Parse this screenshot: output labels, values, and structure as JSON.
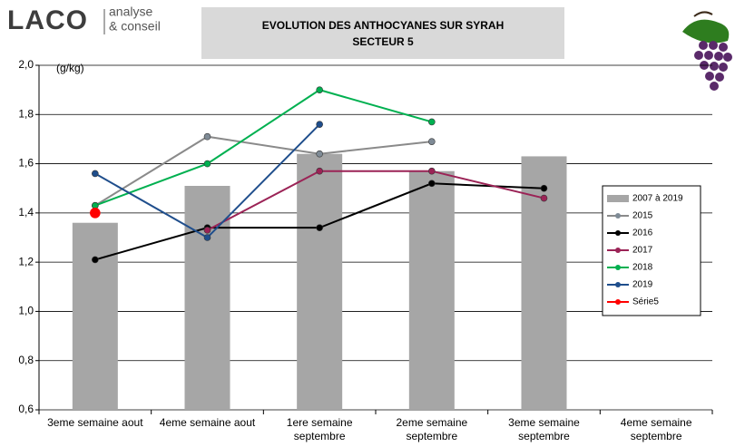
{
  "header": {
    "logo": "LACO",
    "tagline": [
      "analyse",
      "& conseil"
    ]
  },
  "chart_data": {
    "type": "bar-line",
    "title": [
      "EVOLUTION DES ANTHOCYANES SUR SYRAH",
      "SECTEUR 5"
    ],
    "y_label": "(g/kg)",
    "categories": [
      "3eme semaine aout",
      "4eme semaine aout",
      "1ere semaine septembre",
      "2eme semaine septembre",
      "3eme semaine septembre",
      "4eme semaine septembre"
    ],
    "ylim": [
      0.6,
      2.0
    ],
    "yticks": [
      {
        "value": 0.6,
        "label": "0,6"
      },
      {
        "value": 0.8,
        "label": "0,8"
      },
      {
        "value": 1.0,
        "label": "1,0"
      },
      {
        "value": 1.2,
        "label": "1,2"
      },
      {
        "value": 1.4,
        "label": "1,4"
      },
      {
        "value": 1.6,
        "label": "1,6"
      },
      {
        "value": 1.8,
        "label": "1,8"
      },
      {
        "value": 2.0,
        "label": "2,0"
      }
    ],
    "grid": true,
    "legend": "right",
    "series": [
      {
        "name": "2007 à 2019",
        "kind": "bar",
        "color": "#a6a6a6",
        "values": [
          1.36,
          1.51,
          1.64,
          1.57,
          1.63,
          null
        ]
      },
      {
        "name": "2015",
        "kind": "line",
        "color": "#8a8a8a",
        "marker": "#7f8b96",
        "values": [
          1.43,
          1.71,
          1.64,
          1.69,
          null,
          null
        ]
      },
      {
        "name": "2016",
        "kind": "line",
        "color": "#000000",
        "marker": "#000000",
        "values": [
          1.21,
          1.34,
          1.34,
          1.52,
          1.5,
          null
        ]
      },
      {
        "name": "2017",
        "kind": "line",
        "color": "#9b2356",
        "marker": "#9b2356",
        "values": [
          null,
          1.33,
          1.57,
          1.57,
          1.46,
          null
        ]
      },
      {
        "name": "2018",
        "kind": "line",
        "color": "#00b050",
        "marker": "#00b050",
        "values": [
          1.43,
          1.6,
          1.9,
          1.77,
          null,
          null
        ]
      },
      {
        "name": "2019",
        "kind": "line",
        "color": "#1f4e8c",
        "marker": "#1f4e8c",
        "values": [
          1.56,
          1.3,
          1.76,
          null,
          null,
          null
        ]
      },
      {
        "name": "Série5",
        "kind": "line",
        "color": "#ff0000",
        "marker": "#ff0000",
        "size": 5.5,
        "values": [
          1.4,
          null,
          null,
          null,
          null,
          null
        ]
      }
    ]
  }
}
